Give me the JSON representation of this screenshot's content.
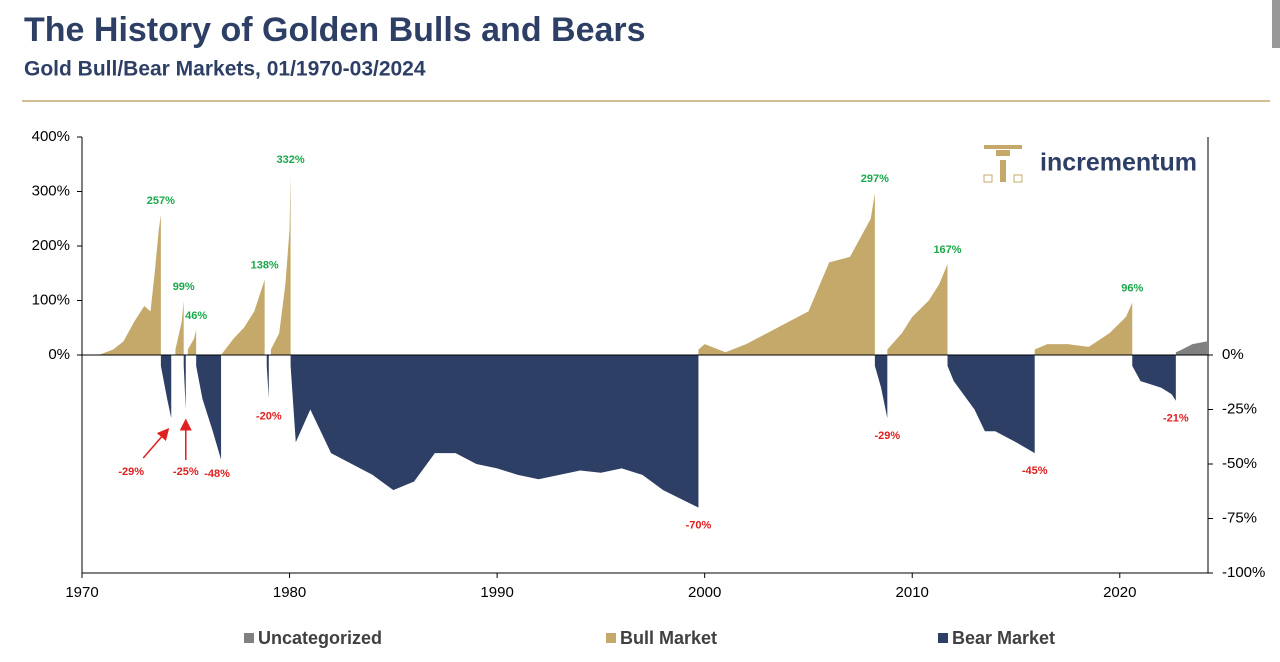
{
  "title": "The History of Golden Bulls and Bears",
  "subtitle": "Gold Bull/Bear Markets, 01/1970-03/2024",
  "logo": "incrementum",
  "chart_data": {
    "type": "area",
    "xlim": [
      1970,
      2024.25
    ],
    "xticks": [
      1970,
      1980,
      1990,
      2000,
      2010,
      2020
    ],
    "ylim": [
      -400,
      400
    ],
    "yticks": [
      {
        "value": 400,
        "label": "400%"
      },
      {
        "value": 300,
        "label": "300%"
      },
      {
        "value": 200,
        "label": "200%"
      },
      {
        "value": 100,
        "label": "100%"
      },
      {
        "value": 0,
        "label": "0%"
      }
    ],
    "y2lim": [
      -100,
      100
    ],
    "y2ticks": [
      {
        "value": 0,
        "label": "0%"
      },
      {
        "value": -25,
        "label": "-25%"
      },
      {
        "value": -50,
        "label": "-50%"
      },
      {
        "value": -75,
        "label": "-75%"
      },
      {
        "value": -100,
        "label": "-100%"
      }
    ],
    "series": [
      {
        "name": "Uncategorized",
        "color": "#808080",
        "x": [
          2022.7,
          2023,
          2023.5,
          2024.2
        ],
        "values": [
          5,
          10,
          20,
          25
        ]
      },
      {
        "name": "Bull Market",
        "color": "#c4a96b",
        "x": [
          1970.8,
          1971.5,
          1972,
          1972.5,
          1973,
          1973.3,
          1973.5,
          1973.7,
          1973.8,
          1973.81,
          1974.5,
          1974.8,
          1974.9,
          1974.91,
          1975.1,
          1975.4,
          1975.5,
          1975.51,
          1976.7,
          1977.3,
          1977.8,
          1978.3,
          1978.8,
          1978.81,
          1979.1,
          1979.5,
          1979.8,
          1980,
          1980.05,
          1980.06,
          1999.7,
          2000,
          2001,
          2002,
          2003,
          2004,
          2005,
          2006,
          2007,
          2008,
          2008.2,
          2008.21,
          2008.8,
          2009.5,
          2010,
          2010.8,
          2011.3,
          2011.7,
          2011.71,
          2015.9,
          2016.5,
          2017.5,
          2018.5,
          2019.5,
          2020.3,
          2020.6
        ],
        "values": [
          0,
          10,
          25,
          60,
          90,
          80,
          150,
          230,
          257,
          null,
          10,
          60,
          99,
          null,
          10,
          30,
          46,
          null,
          0,
          30,
          50,
          80,
          138,
          null,
          10,
          40,
          130,
          230,
          332,
          null,
          10,
          20,
          5,
          20,
          40,
          60,
          80,
          170,
          180,
          250,
          297,
          null,
          10,
          40,
          70,
          100,
          130,
          167,
          null,
          10,
          20,
          20,
          15,
          40,
          70,
          96
        ]
      },
      {
        "name": "Bear Market",
        "color": "#2e3f66",
        "axis": "y2",
        "x": [
          1973.8,
          1974.1,
          1974.3,
          1974.31,
          1974.9,
          1975,
          1975.01,
          1975.5,
          1975.8,
          1976.3,
          1976.7,
          1976.71,
          1978.9,
          1979,
          1979.01,
          1980.05,
          1980.3,
          1981,
          1982,
          1983,
          1984,
          1985,
          1986,
          1987,
          1988,
          1989,
          1990,
          1991,
          1992,
          1993,
          1994,
          1995,
          1996,
          1997,
          1998,
          1999.7,
          1999.71,
          2008.2,
          2008.5,
          2008.8,
          2008.81,
          2011.7,
          2012,
          2013,
          2013.5,
          2014,
          2015,
          2015.9,
          2015.91,
          2020.6,
          2021,
          2022,
          2022.5,
          2022.7
        ],
        "values": [
          -5,
          -20,
          -29,
          null,
          -5,
          -25,
          null,
          -5,
          -20,
          -35,
          -48,
          null,
          -5,
          -20,
          null,
          -5,
          -40,
          -25,
          -45,
          -50,
          -55,
          -62,
          -58,
          -45,
          -45,
          -50,
          -52,
          -55,
          -57,
          -55,
          -53,
          -54,
          -52,
          -55,
          -62,
          -70,
          null,
          -5,
          -15,
          -29,
          null,
          -5,
          -12,
          -25,
          -35,
          -35,
          -40,
          -45,
          null,
          -5,
          -12,
          -15,
          -18,
          -21
        ]
      }
    ],
    "peak_labels": [
      {
        "x": 1973.8,
        "value": 257,
        "label": "257%"
      },
      {
        "x": 1974.9,
        "value": 99,
        "label": "99%"
      },
      {
        "x": 1975.5,
        "value": 46,
        "label": "46%"
      },
      {
        "x": 1978.8,
        "value": 138,
        "label": "138%"
      },
      {
        "x": 1980.05,
        "value": 332,
        "label": "332%"
      },
      {
        "x": 2008.2,
        "value": 297,
        "label": "297%"
      },
      {
        "x": 2011.7,
        "value": 167,
        "label": "167%"
      },
      {
        "x": 2020.6,
        "value": 96,
        "label": "96%"
      }
    ],
    "trough_labels": [
      {
        "x": 1974.3,
        "value": -29,
        "label": "-29%"
      },
      {
        "x": 1975,
        "value": -25,
        "label": "-25%"
      },
      {
        "x": 1976.7,
        "value": -48,
        "label": "-48%"
      },
      {
        "x": 1979,
        "value": -20,
        "label": "-20%"
      },
      {
        "x": 1999.7,
        "value": -70,
        "label": "-70%"
      },
      {
        "x": 2008.8,
        "value": -29,
        "label": "-29%"
      },
      {
        "x": 2015.9,
        "value": -45,
        "label": "-45%"
      },
      {
        "x": 2022.7,
        "value": -21,
        "label": "-21%"
      }
    ]
  }
}
